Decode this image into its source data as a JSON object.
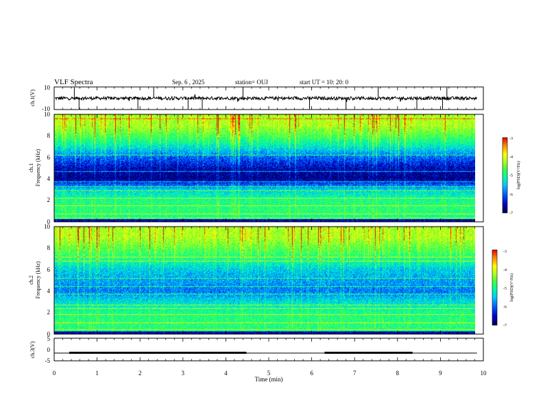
{
  "header": {
    "title": "VLF Spectra",
    "date": "Sep. 6 , 2025",
    "station": "station= OUJ",
    "start": "start  UT =   10: 20: 0"
  },
  "colors": {
    "axes": "#000000",
    "background": "#ffffff",
    "colorscale": [
      "#000050",
      "#0000c8",
      "#0060ff",
      "#00c8ff",
      "#00ffa0",
      "#40ff40",
      "#b0ff20",
      "#ffff00",
      "#ff8000",
      "#e00000"
    ]
  },
  "chart_data": [
    {
      "id": "ch1-waveform",
      "type": "line",
      "ylabel": "ch.1(V)",
      "ylim": [
        -10,
        10
      ],
      "yticks": [
        "10",
        "-10"
      ],
      "baseline": 0,
      "spike_times_min": [
        0.47,
        0.58,
        1.95,
        2.32,
        3.12,
        3.45,
        4.4,
        5.95,
        6.8,
        7.55,
        8.45,
        9.05,
        9.15
      ],
      "xlim": [
        0,
        10
      ]
    },
    {
      "id": "ch1-spectrogram",
      "type": "heatmap",
      "ylabel": "ch.1",
      "ylabel2": "Frequency  (kHz)",
      "ylim": [
        0,
        10
      ],
      "yticks": [
        "0",
        "2",
        "4",
        "6",
        "8",
        "10"
      ],
      "xlim": [
        0,
        9.85
      ],
      "colorbar": {
        "label": "log(PSD)(V²/Hz)",
        "range": [
          -7,
          -3
        ],
        "ticks": [
          "-3",
          "-4",
          "-5",
          "-6",
          "-7"
        ]
      },
      "bands_khz": [
        0.3,
        0.7,
        1.5,
        2.2,
        2.9,
        3.3,
        3.7,
        4.7,
        6.2,
        9.6
      ],
      "spectral_profile": [
        {
          "f": 0,
          "v": -5.2
        },
        {
          "f": 1,
          "v": -5.0
        },
        {
          "f": 2,
          "v": -5.1
        },
        {
          "f": 3,
          "v": -5.6
        },
        {
          "f": 4,
          "v": -6.8
        },
        {
          "f": 5,
          "v": -6.6
        },
        {
          "f": 6,
          "v": -6.1
        },
        {
          "f": 7,
          "v": -5.4
        },
        {
          "f": 8,
          "v": -4.8
        },
        {
          "f": 9,
          "v": -4.3
        },
        {
          "f": 10,
          "v": -4.3
        }
      ]
    },
    {
      "id": "ch2-spectrogram",
      "type": "heatmap",
      "ylabel": "ch.2",
      "ylabel2": "Frequency  (kHz)",
      "ylim": [
        0,
        10
      ],
      "yticks": [
        "0",
        "2",
        "4",
        "6",
        "8",
        "10"
      ],
      "xlim": [
        0,
        9.85
      ],
      "colorbar": {
        "label": "log(PSD)(V²/Hz)",
        "range": [
          -7,
          -3
        ],
        "ticks": [
          "-3",
          "-4",
          "-5",
          "-6",
          "-7"
        ]
      },
      "bands_khz": [
        0.4,
        1.0,
        1.8,
        2.4,
        2.7,
        3.7,
        4.4,
        5.2,
        6.8,
        7.2
      ],
      "spectral_profile": [
        {
          "f": 0,
          "v": -5.1
        },
        {
          "f": 1,
          "v": -5.0
        },
        {
          "f": 2,
          "v": -5.1
        },
        {
          "f": 3,
          "v": -5.5
        },
        {
          "f": 4,
          "v": -6.0
        },
        {
          "f": 5,
          "v": -5.8
        },
        {
          "f": 6,
          "v": -5.6
        },
        {
          "f": 7,
          "v": -5.1
        },
        {
          "f": 8,
          "v": -4.7
        },
        {
          "f": 9,
          "v": -4.3
        },
        {
          "f": 10,
          "v": -4.3
        }
      ]
    },
    {
      "id": "ch3-levels",
      "type": "line",
      "ylabel": "ch.3(V)",
      "ylim": [
        -5,
        5
      ],
      "yticks": [
        "5",
        "0",
        "-5"
      ],
      "baseline": -1.6,
      "high_segments_min": [
        [
          0.35,
          4.48
        ],
        [
          6.3,
          8.35
        ]
      ],
      "xlim": [
        0,
        9.85
      ]
    }
  ],
  "xaxis": {
    "label": "Time  (min)",
    "range": [
      0,
      10
    ],
    "ticks": [
      "0",
      "1",
      "2",
      "3",
      "4",
      "5",
      "6",
      "7",
      "8",
      "9",
      "10"
    ]
  }
}
